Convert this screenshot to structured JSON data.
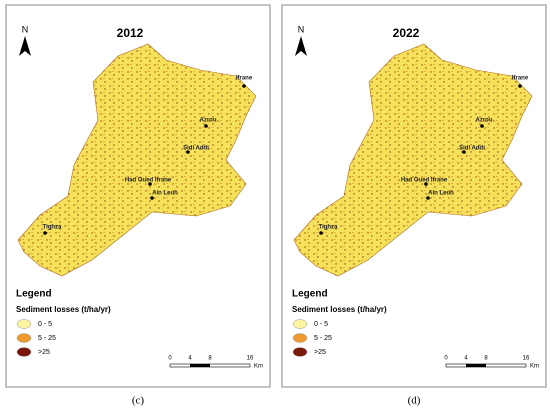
{
  "panels": [
    {
      "title": "2012",
      "caption": "(c)",
      "north": "N",
      "cities": [
        "Ifrane",
        "Azrou",
        "Sidi Addi",
        "Had Oued Ifrane",
        "Ain Leuh",
        "Tighza"
      ],
      "legend": {
        "title": "Legend",
        "subtitle": "Sediment losses (t/ha/yr)",
        "items": [
          "0 - 5",
          "5 - 25",
          ">25"
        ]
      },
      "scale": {
        "ticks": [
          "0",
          "4",
          "8",
          "16"
        ],
        "unit": "Km"
      }
    },
    {
      "title": "2022",
      "caption": "(d)",
      "north": "N",
      "cities": [
        "Ifrane",
        "Azrou",
        "Sidi Addi",
        "Had Oued Ifrane",
        "Ain Leuh",
        "Tighza"
      ],
      "legend": {
        "title": "Legend",
        "subtitle": "Sediment losses (t/ha/yr)",
        "items": [
          "0 - 5",
          "5 - 25",
          ">25"
        ]
      },
      "scale": {
        "ticks": [
          "0",
          "4",
          "8",
          "16"
        ],
        "unit": "Km"
      }
    }
  ]
}
